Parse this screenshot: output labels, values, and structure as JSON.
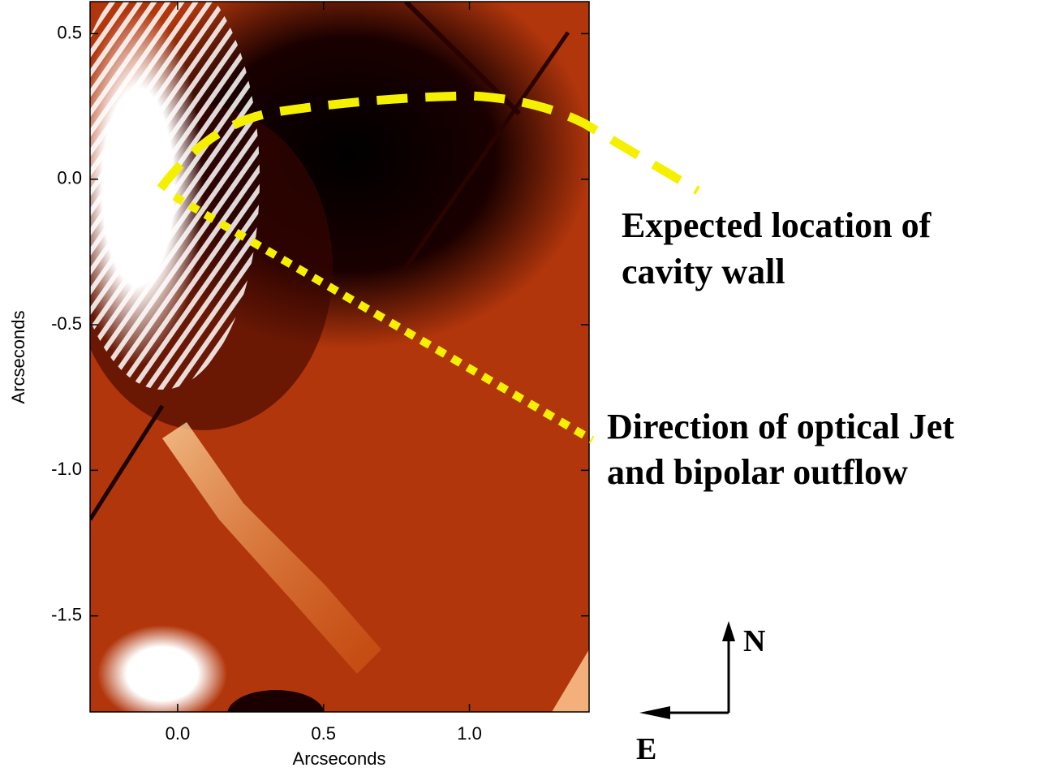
{
  "chart_data": {
    "type": "image",
    "xlabel": "Arcseconds",
    "ylabel": "Arcseconds",
    "xlim": [
      -0.3,
      1.41
    ],
    "ylim": [
      -1.83,
      0.61
    ],
    "xticks": [
      {
        "value": 0,
        "label": "0.0"
      },
      0.5,
      {
        "value": 1,
        "label": "1.0"
      }
    ],
    "yticks": [
      0.5,
      {
        "value": 0,
        "label": "0.0"
      },
      -0.5,
      {
        "value": -1,
        "label": "-1.0"
      },
      -1.5
    ],
    "annotations": [
      {
        "lines": [
          "Expected location of",
          "cavity wall"
        ]
      },
      {
        "lines": [
          "Direction of optical Jet",
          "and bipolar outflow"
        ]
      }
    ],
    "compass": {
      "north": "N",
      "east": "E"
    }
  }
}
